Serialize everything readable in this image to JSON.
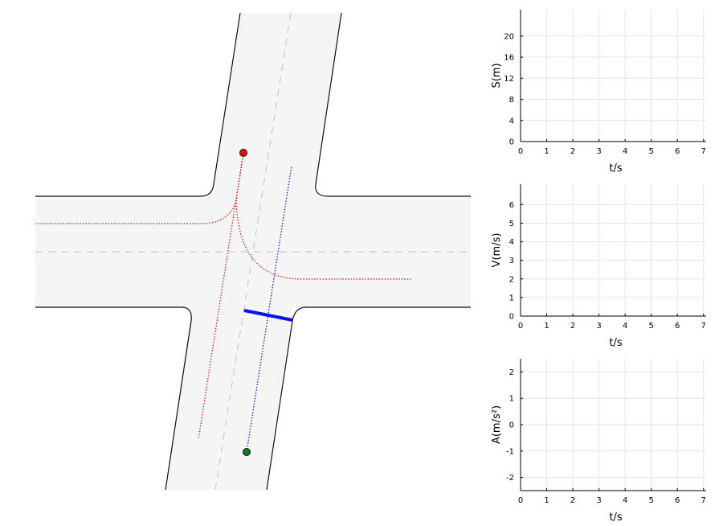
{
  "scene": {
    "colors": {
      "road_fill": "#f5f5f5",
      "road_edge": "#111111",
      "lane_dash": "#c8c8c8",
      "red_path": "#e01010",
      "blue_path": "#0a0ae0",
      "start_point": "#e01010",
      "end_point": "#147a1e",
      "bar": "#0a10e6"
    }
  },
  "plots": [
    {
      "id": "distance",
      "ylabel": "S(m)",
      "xlabel": "t/s",
      "x_ticks": [
        "0",
        "1",
        "2",
        "3",
        "4",
        "5",
        "6",
        "7"
      ],
      "y_ticks": [
        "0",
        "4",
        "8",
        "12",
        "16",
        "20"
      ],
      "x_range": [
        0,
        7.1
      ],
      "y_range": [
        0,
        25
      ]
    },
    {
      "id": "velocity",
      "ylabel": "V(m/s)",
      "xlabel": "t/s",
      "x_ticks": [
        "0",
        "1",
        "2",
        "3",
        "4",
        "5",
        "6",
        "7"
      ],
      "y_ticks": [
        "0",
        "1",
        "2",
        "3",
        "4",
        "5",
        "6"
      ],
      "x_range": [
        0,
        7.1
      ],
      "y_range": [
        0,
        7.1
      ]
    },
    {
      "id": "acceleration",
      "ylabel": "A(m/s²)",
      "xlabel": "t/s",
      "x_ticks": [
        "0",
        "1",
        "2",
        "3",
        "4",
        "5",
        "6",
        "7"
      ],
      "y_ticks": [
        "-2",
        "-1",
        "0",
        "1",
        "2"
      ],
      "x_range": [
        0,
        7.1
      ],
      "y_range": [
        -2.5,
        2.5
      ]
    }
  ]
}
